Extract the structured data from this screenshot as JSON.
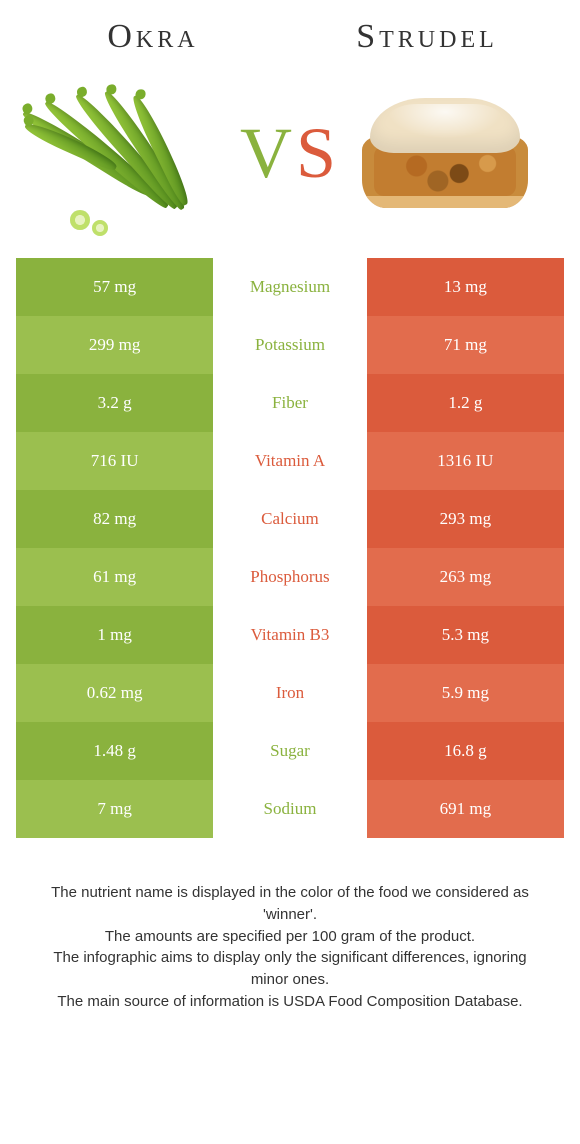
{
  "colors": {
    "left_a": "#8ab23e",
    "left_b": "#9bbf4f",
    "right_a": "#db5b3c",
    "right_b": "#e26c4d"
  },
  "header": {
    "left_title": "Okra",
    "right_title": "Strudel",
    "vs_v": "V",
    "vs_s": "S"
  },
  "rows": [
    {
      "left": "57 mg",
      "label": "Magnesium",
      "right": "13 mg",
      "winner": "left"
    },
    {
      "left": "299 mg",
      "label": "Potassium",
      "right": "71 mg",
      "winner": "left"
    },
    {
      "left": "3.2 g",
      "label": "Fiber",
      "right": "1.2 g",
      "winner": "left"
    },
    {
      "left": "716 IU",
      "label": "Vitamin A",
      "right": "1316 IU",
      "winner": "right"
    },
    {
      "left": "82 mg",
      "label": "Calcium",
      "right": "293 mg",
      "winner": "right"
    },
    {
      "left": "61 mg",
      "label": "Phosphorus",
      "right": "263 mg",
      "winner": "right"
    },
    {
      "left": "1 mg",
      "label": "Vitamin B3",
      "right": "5.3 mg",
      "winner": "right"
    },
    {
      "left": "0.62 mg",
      "label": "Iron",
      "right": "5.9 mg",
      "winner": "right"
    },
    {
      "left": "1.48 g",
      "label": "Sugar",
      "right": "16.8 g",
      "winner": "left"
    },
    {
      "left": "7 mg",
      "label": "Sodium",
      "right": "691 mg",
      "winner": "left"
    }
  ],
  "footer": {
    "l1": "The nutrient name is displayed in the color of the food we considered as 'winner'.",
    "l2": "The amounts are specified per 100 gram of the product.",
    "l3": "The infographic aims to display only the significant differences, ignoring minor ones.",
    "l4": "The main source of information is USDA Food Composition Database."
  }
}
